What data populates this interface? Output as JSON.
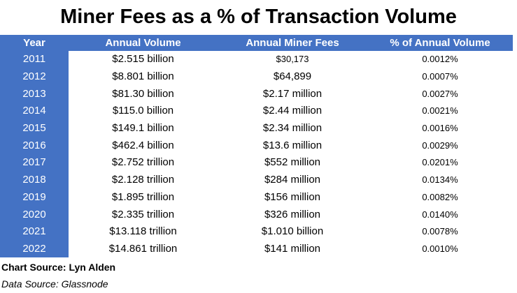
{
  "title": "Miner Fees as a % of Transaction Volume",
  "headers": [
    "Year",
    "Annual Volume",
    "Annual Miner Fees",
    "% of Annual Volume"
  ],
  "rows": [
    {
      "year": "2011",
      "volume": "$2.515 billion",
      "fees": "$30,173",
      "pct": "0.0012%"
    },
    {
      "year": "2012",
      "volume": "$8.801 billion",
      "fees": "$64,899",
      "pct": "0.0007%"
    },
    {
      "year": "2013",
      "volume": "$81.30 billion",
      "fees": "$2.17 million",
      "pct": "0.0027%"
    },
    {
      "year": "2014",
      "volume": "$115.0 billion",
      "fees": "$2.44 million",
      "pct": "0.0021%"
    },
    {
      "year": "2015",
      "volume": "$149.1 billion",
      "fees": "$2.34 million",
      "pct": "0.0016%"
    },
    {
      "year": "2016",
      "volume": "$462.4 billion",
      "fees": "$13.6 million",
      "pct": "0.0029%"
    },
    {
      "year": "2017",
      "volume": "$2.752 trillion",
      "fees": "$552 million",
      "pct": "0.0201%"
    },
    {
      "year": "2018",
      "volume": "$2.128 trillion",
      "fees": "$284 million",
      "pct": "0.0134%"
    },
    {
      "year": "2019",
      "volume": "$1.895 trillion",
      "fees": "$156 million",
      "pct": "0.0082%"
    },
    {
      "year": "2020",
      "volume": "$2.335 trillion",
      "fees": "$326 million",
      "pct": "0.0140%"
    },
    {
      "year": "2021",
      "volume": "$13.118 trillion",
      "fees": "$1.010 billion",
      "pct": "0.0078%"
    },
    {
      "year": "2022",
      "volume": "$14.861 trillion",
      "fees": "$141 million",
      "pct": "0.0010%"
    }
  ],
  "chart_source": "Chart Source: Lyn Alden",
  "data_source": "Data Source: Glassnode",
  "colors": {
    "header_bg": "#4472c4",
    "header_text": "#ffffff"
  }
}
